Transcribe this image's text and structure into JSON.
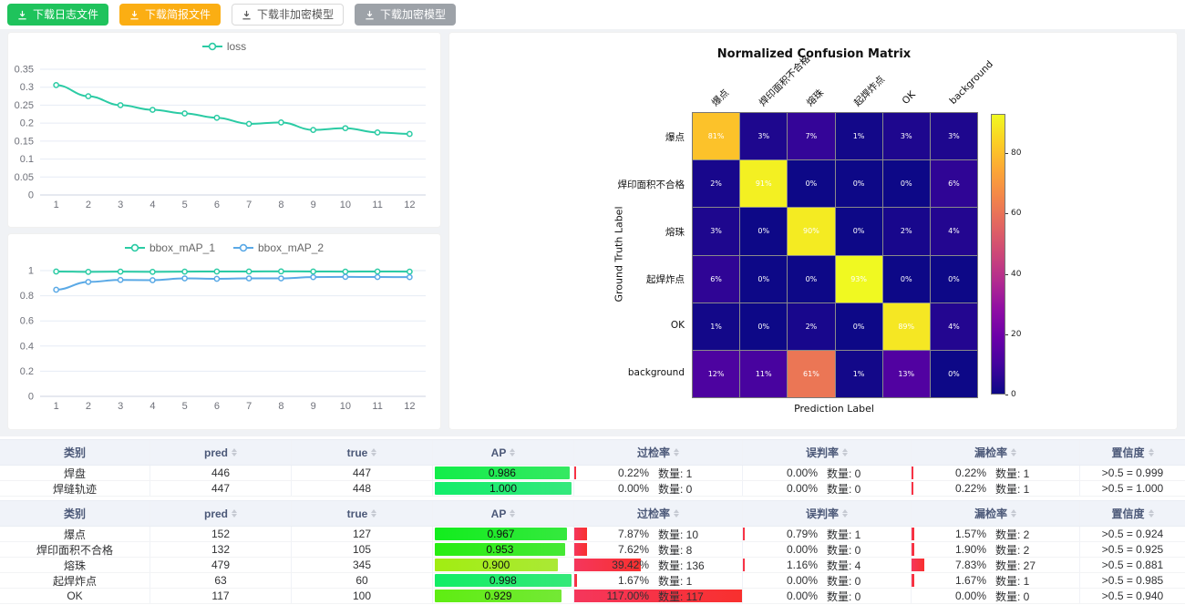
{
  "toolbar": {
    "buttons": [
      {
        "label": "下载日志文件",
        "style": "green"
      },
      {
        "label": "下载简报文件",
        "style": "orange"
      },
      {
        "label": "下载非加密模型",
        "style": "plain"
      },
      {
        "label": "下载加密模型",
        "style": "gray"
      }
    ]
  },
  "colors": {
    "teal_series": "#2bcba4",
    "blue_series": "#5aa9e6",
    "green_button": "#1fc35c",
    "orange_button": "#fbae13",
    "gray_button": "#9da2a8",
    "red_bar": "#f5303e",
    "grid_line": "#e6ebf5",
    "axis_text": "#6e7079"
  },
  "chart_data": [
    {
      "type": "line",
      "title": "",
      "legend": [
        "loss"
      ],
      "x": [
        1,
        2,
        3,
        4,
        5,
        6,
        7,
        8,
        9,
        10,
        11,
        12
      ],
      "series": [
        {
          "name": "loss",
          "color": "#2bcba4",
          "values": [
            0.306,
            0.275,
            0.25,
            0.237,
            0.227,
            0.215,
            0.198,
            0.202,
            0.181,
            0.186,
            0.174,
            0.17
          ]
        }
      ],
      "ylim": [
        0,
        0.35
      ],
      "yticks": [
        0,
        0.05,
        0.1,
        0.15,
        0.2,
        0.25,
        0.3,
        0.35
      ],
      "grid": true,
      "legend_position": "top"
    },
    {
      "type": "line",
      "title": "",
      "legend": [
        "bbox_mAP_1",
        "bbox_mAP_2"
      ],
      "x": [
        1,
        2,
        3,
        4,
        5,
        6,
        7,
        8,
        9,
        10,
        11,
        12
      ],
      "series": [
        {
          "name": "bbox_mAP_1",
          "color": "#2bcba4",
          "values": [
            0.993,
            0.99,
            0.992,
            0.99,
            0.992,
            0.993,
            0.993,
            0.994,
            0.993,
            0.992,
            0.993,
            0.992
          ]
        },
        {
          "name": "bbox_mAP_2",
          "color": "#5aa9e6",
          "values": [
            0.848,
            0.91,
            0.926,
            0.924,
            0.938,
            0.935,
            0.938,
            0.938,
            0.948,
            0.95,
            0.949,
            0.948
          ]
        }
      ],
      "ylim": [
        0,
        1
      ],
      "yticks": [
        0,
        0.2,
        0.4,
        0.6,
        0.8,
        1
      ],
      "grid": true,
      "legend_position": "top"
    },
    {
      "type": "heatmap",
      "title": "Normalized Confusion Matrix",
      "xlabel": "Prediction Label",
      "ylabel": "Ground Truth Label",
      "labels": [
        "爆点",
        "焊印面积不合格",
        "熔珠",
        "起焊炸点",
        "OK",
        "background"
      ],
      "matrix": [
        [
          81,
          3,
          7,
          1,
          3,
          3
        ],
        [
          2,
          91,
          0,
          0,
          0,
          6
        ],
        [
          3,
          0,
          90,
          0,
          2,
          4
        ],
        [
          6,
          0,
          0,
          93,
          0,
          0
        ],
        [
          1,
          0,
          2,
          0,
          89,
          4
        ],
        [
          12,
          11,
          61,
          1,
          13,
          0
        ]
      ],
      "vmax": 93,
      "colorbar_ticks": [
        0,
        20,
        40,
        60,
        80
      ],
      "colormap": "plasma"
    }
  ],
  "tables": [
    {
      "headers": [
        {
          "label": "类别",
          "sortable": false
        },
        {
          "label": "pred",
          "sortable": true
        },
        {
          "label": "true",
          "sortable": true
        },
        {
          "label": "AP",
          "sortable": true
        },
        {
          "label": "过检率",
          "sortable": true
        },
        {
          "label": "误判率",
          "sortable": true
        },
        {
          "label": "漏检率",
          "sortable": true
        },
        {
          "label": "置信度",
          "sortable": true
        }
      ],
      "rows": [
        {
          "cat": "焊盘",
          "pred": "446",
          "true": "447",
          "ap": 0.986,
          "ap_text": "0.986",
          "over": {
            "pct": "0.22%",
            "val": 0.22,
            "count": "数量: 1"
          },
          "mis": {
            "pct": "0.00%",
            "val": 0,
            "count": "数量: 0"
          },
          "miss": {
            "pct": "0.22%",
            "val": 0.22,
            "count": "数量: 1"
          },
          "conf": ">0.5 = 0.999"
        },
        {
          "cat": "焊缝轨迹",
          "pred": "447",
          "true": "448",
          "ap": 1.0,
          "ap_text": "1.000",
          "over": {
            "pct": "0.00%",
            "val": 0,
            "count": "数量: 0"
          },
          "mis": {
            "pct": "0.00%",
            "val": 0,
            "count": "数量: 0"
          },
          "miss": {
            "pct": "0.22%",
            "val": 0.22,
            "count": "数量: 1"
          },
          "conf": ">0.5 = 1.000"
        }
      ]
    },
    {
      "headers": [
        {
          "label": "类别",
          "sortable": false
        },
        {
          "label": "pred",
          "sortable": true
        },
        {
          "label": "true",
          "sortable": true
        },
        {
          "label": "AP",
          "sortable": true
        },
        {
          "label": "过检率",
          "sortable": true
        },
        {
          "label": "误判率",
          "sortable": true
        },
        {
          "label": "漏检率",
          "sortable": true
        },
        {
          "label": "置信度",
          "sortable": true
        }
      ],
      "rows": [
        {
          "cat": "爆点",
          "pred": "152",
          "true": "127",
          "ap": 0.967,
          "ap_text": "0.967",
          "over": {
            "pct": "7.87%",
            "val": 7.87,
            "count": "数量: 10"
          },
          "mis": {
            "pct": "0.79%",
            "val": 0.79,
            "count": "数量: 1"
          },
          "miss": {
            "pct": "1.57%",
            "val": 1.57,
            "count": "数量: 2"
          },
          "conf": ">0.5 = 0.924"
        },
        {
          "cat": "焊印面积不合格",
          "pred": "132",
          "true": "105",
          "ap": 0.953,
          "ap_text": "0.953",
          "over": {
            "pct": "7.62%",
            "val": 7.62,
            "count": "数量: 8"
          },
          "mis": {
            "pct": "0.00%",
            "val": 0,
            "count": "数量: 0"
          },
          "miss": {
            "pct": "1.90%",
            "val": 1.9,
            "count": "数量: 2"
          },
          "conf": ">0.5 = 0.925"
        },
        {
          "cat": "熔珠",
          "pred": "479",
          "true": "345",
          "ap": 0.9,
          "ap_text": "0.900",
          "over": {
            "pct": "39.42%",
            "val": 39.42,
            "count": "数量: 136"
          },
          "mis": {
            "pct": "1.16%",
            "val": 1.16,
            "count": "数量: 4"
          },
          "miss": {
            "pct": "7.83%",
            "val": 7.83,
            "count": "数量: 27"
          },
          "conf": ">0.5 = 0.881"
        },
        {
          "cat": "起焊炸点",
          "pred": "63",
          "true": "60",
          "ap": 0.998,
          "ap_text": "0.998",
          "over": {
            "pct": "1.67%",
            "val": 1.67,
            "count": "数量: 1"
          },
          "mis": {
            "pct": "0.00%",
            "val": 0,
            "count": "数量: 0"
          },
          "miss": {
            "pct": "1.67%",
            "val": 1.67,
            "count": "数量: 1"
          },
          "conf": ">0.5 = 0.985"
        },
        {
          "cat": "OK",
          "pred": "117",
          "true": "100",
          "ap": 0.929,
          "ap_text": "0.929",
          "over": {
            "pct": "117.00%",
            "val": 117,
            "count": "数量: 117"
          },
          "mis": {
            "pct": "0.00%",
            "val": 0,
            "count": "数量: 0"
          },
          "miss": {
            "pct": "0.00%",
            "val": 0,
            "count": "数量: 0"
          },
          "conf": ">0.5 = 0.940"
        }
      ]
    }
  ]
}
